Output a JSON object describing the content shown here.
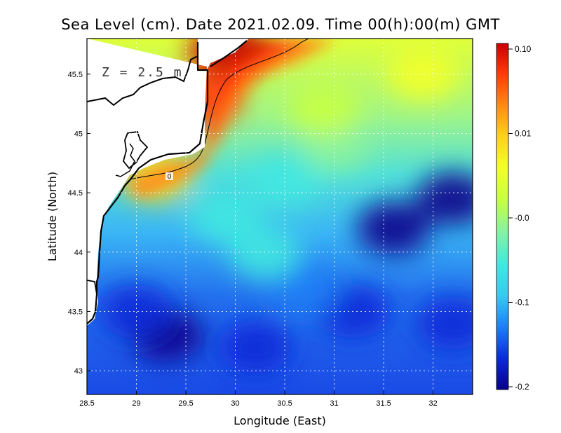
{
  "chart_data": {
    "type": "heatmap",
    "title": "Sea Level (cm). Date 2021.02.09. Time 00(h):00(m) GMT",
    "xlabel": "Longitude (East)",
    "ylabel": "Latitude (North)",
    "xlim": [
      28.5,
      32.4
    ],
    "ylim": [
      42.8,
      45.8
    ],
    "x_ticks": [
      "28.5",
      "29",
      "29.5",
      "30",
      "30.5",
      "31",
      "31.5",
      "32"
    ],
    "x_tick_values": [
      28.5,
      29,
      29.5,
      30,
      30.5,
      31,
      31.5,
      32
    ],
    "y_ticks": [
      "43",
      "43.5",
      "44",
      "44.5",
      "45",
      "45.5"
    ],
    "y_tick_values": [
      43,
      43.5,
      44,
      44.5,
      45,
      45.5
    ],
    "grid": true,
    "depth_label": "Z = 2.5 m",
    "contour_label": "0",
    "colorbar": {
      "ticks": [
        "0.10",
        "0.01",
        "-0.0",
        "-0.1",
        "-0.2"
      ],
      "colors": [
        "#08008a",
        "#0a2ad8",
        "#1e7ef5",
        "#38c8f0",
        "#40e8e0",
        "#8af2a0",
        "#c8ff40",
        "#f2ff2a",
        "#ffd21e",
        "#ff8c14",
        "#ff3c0a",
        "#c80000"
      ]
    },
    "field_anomalies": [
      {
        "lon": 29.3,
        "lat": 43.3,
        "level": -0.2
      },
      {
        "lon": 29.0,
        "lat": 43.5,
        "level": -0.17
      },
      {
        "lon": 30.2,
        "lat": 43.2,
        "level": -0.16
      },
      {
        "lon": 31.6,
        "lat": 44.2,
        "level": -0.2
      },
      {
        "lon": 32.2,
        "lat": 44.45,
        "level": -0.19
      },
      {
        "lon": 31.2,
        "lat": 43.5,
        "level": -0.18
      },
      {
        "lon": 30.7,
        "lat": 43.7,
        "level": -0.15
      },
      {
        "lon": 32.2,
        "lat": 43.4,
        "level": -0.17
      },
      {
        "lon": 30.5,
        "lat": 44.6,
        "level": -0.08
      },
      {
        "lon": 31.0,
        "lat": 44.9,
        "level": -0.06
      },
      {
        "lon": 29.9,
        "lat": 44.3,
        "level": -0.1
      },
      {
        "lon": 30.3,
        "lat": 44.0,
        "level": -0.09
      },
      {
        "lon": 31.9,
        "lat": 45.5,
        "level": 0.0
      },
      {
        "lon": 30.9,
        "lat": 45.2,
        "level": -0.05
      },
      {
        "lon": 29.2,
        "lat": 44.65,
        "level": 0.03
      },
      {
        "lon": 29.9,
        "lat": 45.7,
        "level": 0.1
      },
      {
        "lon": 29.7,
        "lat": 45.3,
        "level": 0.07
      }
    ]
  }
}
